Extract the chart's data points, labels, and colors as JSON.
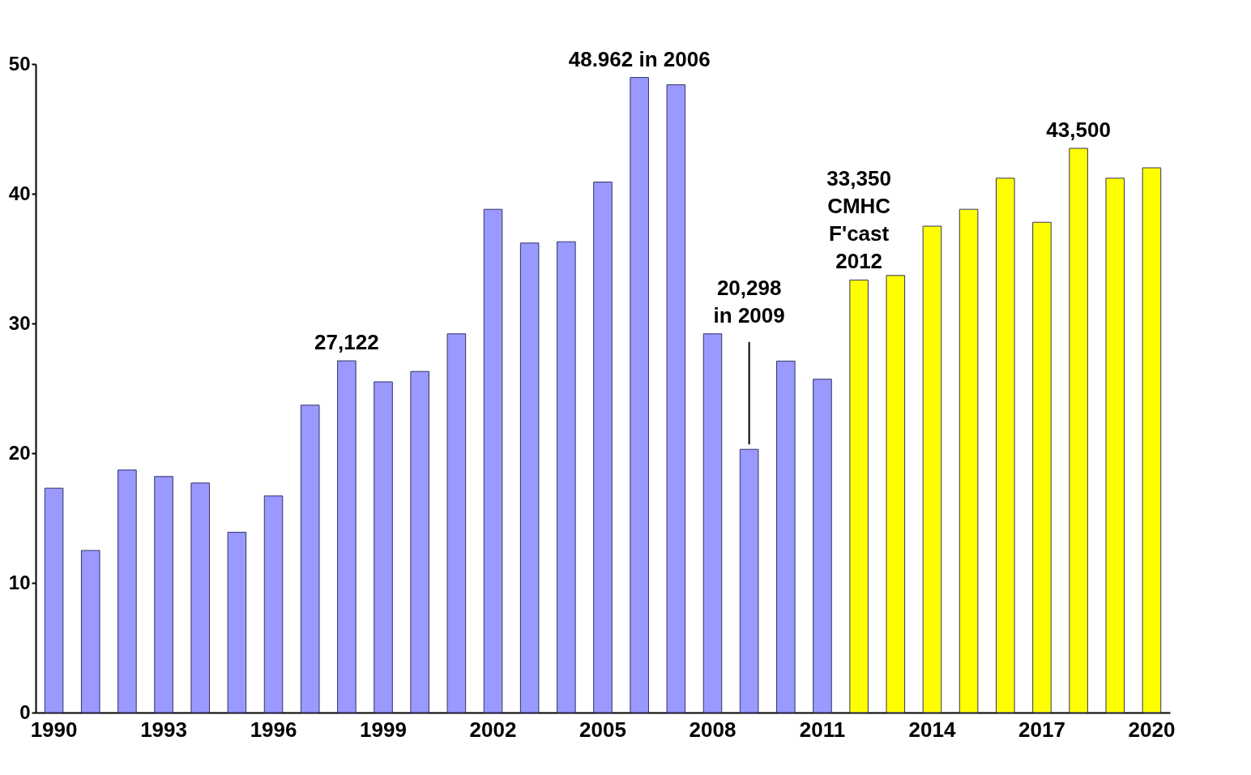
{
  "chart_data": {
    "type": "bar",
    "categories": [
      "1990",
      null,
      null,
      "1993",
      null,
      null,
      "1996",
      null,
      null,
      "1999",
      null,
      null,
      "2002",
      null,
      null,
      "2005",
      null,
      null,
      "2008",
      null,
      null,
      "2011",
      null,
      null,
      "2014",
      null,
      null,
      "2017",
      null,
      null,
      "2020"
    ],
    "values": [
      17.3,
      12.5,
      18.7,
      18.2,
      17.7,
      13.9,
      16.7,
      23.7,
      27.122,
      25.5,
      26.3,
      29.2,
      38.8,
      36.2,
      36.3,
      40.9,
      48.962,
      48.4,
      29.2,
      20.298,
      27.1,
      25.7,
      33.35,
      33.7,
      37.5,
      38.8,
      41.2,
      37.8,
      43.5,
      41.2,
      42.0
    ],
    "colors": [
      "#9999ff",
      "#9999ff",
      "#9999ff",
      "#9999ff",
      "#9999ff",
      "#9999ff",
      "#9999ff",
      "#9999ff",
      "#9999ff",
      "#9999ff",
      "#9999ff",
      "#9999ff",
      "#9999ff",
      "#9999ff",
      "#9999ff",
      "#9999ff",
      "#9999ff",
      "#9999ff",
      "#9999ff",
      "#9999ff",
      "#9999ff",
      "#9999ff",
      "#ffff00",
      "#ffff00",
      "#ffff00",
      "#ffff00",
      "#ffff00",
      "#ffff00",
      "#ffff00",
      "#ffff00",
      "#ffff00"
    ],
    "ylim": [
      0,
      50
    ],
    "yticks": [
      0,
      10,
      20,
      30,
      40,
      50
    ],
    "grid": false,
    "annotations": [
      {
        "text": "27,122",
        "y": 27.122
      },
      {
        "text": "48.962 in 2006",
        "y": 48.962
      },
      {
        "text": "20,298\nin 2009",
        "y": 20.298
      },
      {
        "text": "33,350\nCMHC\nF'cast\n2012",
        "y": 33.35
      },
      {
        "text": "43,500",
        "y": 43.5
      }
    ]
  }
}
